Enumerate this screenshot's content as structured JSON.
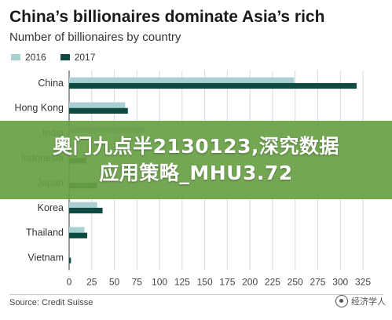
{
  "chart_data": {
    "type": "bar",
    "orientation": "horizontal",
    "title": "China’s billionaires dominate Asia’s rich",
    "subtitle": "Number of billionaires by country",
    "categories": [
      "China",
      "Hong Kong",
      "India",
      "Indonesia",
      "Japan",
      "Korea",
      "Thailand",
      "Vietnam"
    ],
    "series": [
      {
        "name": "2016",
        "color": "#a8cfd1",
        "values": [
          249,
          62,
          83,
          0,
          0,
          31,
          17,
          0
        ]
      },
      {
        "name": "2017",
        "color": "#0f4a42",
        "values": [
          318,
          65,
          0,
          19,
          31,
          37,
          20,
          2
        ]
      }
    ],
    "xlim": [
      0,
      325
    ],
    "xticks": [
      "0",
      "25",
      "50",
      "75",
      "100",
      "125",
      "150",
      "175",
      "200",
      "225",
      "250",
      "275",
      "300",
      "325"
    ],
    "xlabel": "",
    "ylabel": "",
    "grid": "vertical",
    "legend_position": "top-left",
    "source": "Source: Credit Suisse"
  },
  "overlay": {
    "banner_line1": "奥门九点半2130123,深究数据",
    "banner_line2": "应用策略_MHU3.72",
    "banner_color": "#689f44"
  },
  "watermark": {
    "text": "经济学人",
    "icon": "wechat-logo-icon"
  }
}
